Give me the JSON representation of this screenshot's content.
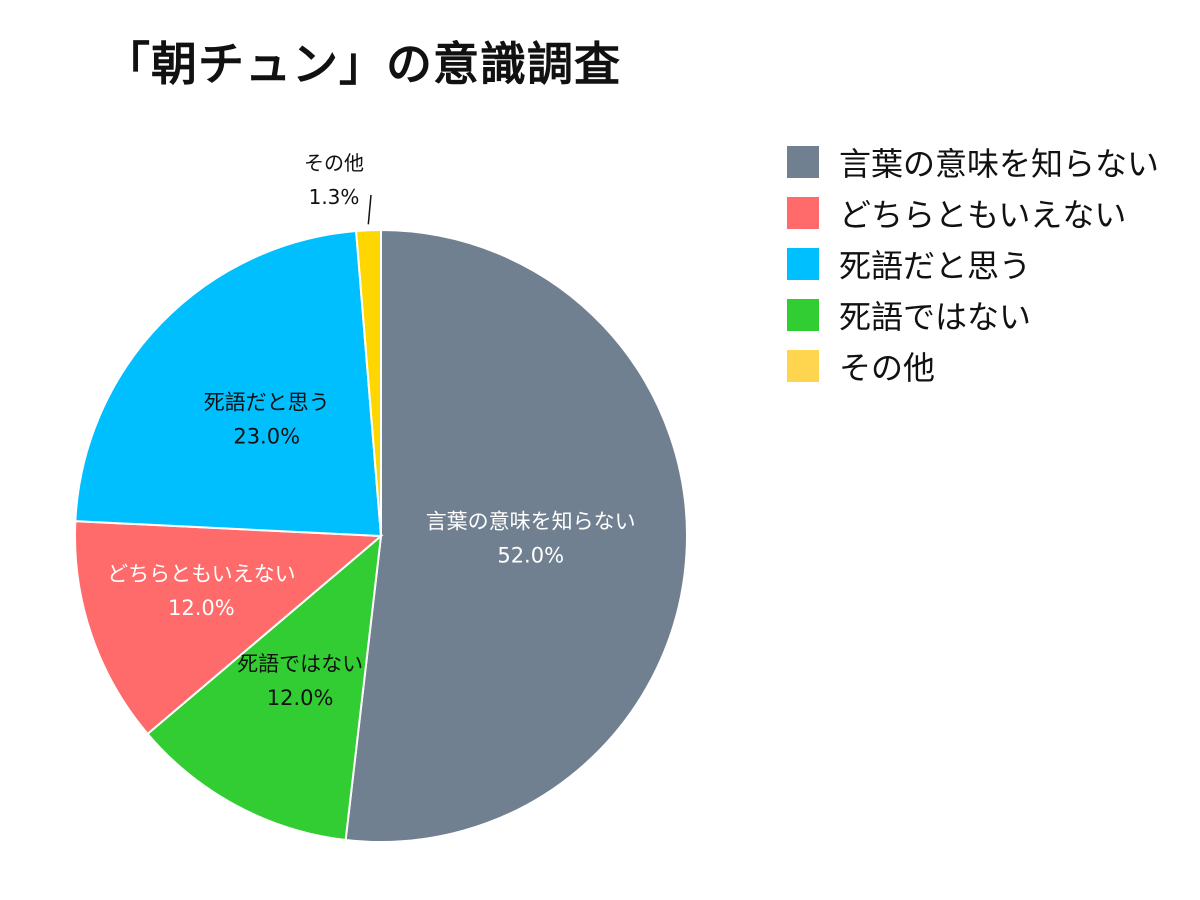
{
  "title": "「朝チュン」の意識調査",
  "chart_data": {
    "type": "pie",
    "title": "「朝チュン」の意識調査",
    "slices": [
      {
        "label": "言葉の意味を知らない",
        "value": 52.0,
        "display": "52.0%",
        "color": "#708090",
        "label_color": "#ffffff"
      },
      {
        "label": "死語ではない",
        "value": 12.0,
        "display": "12.0%",
        "color": "#32cd32",
        "label_color": "#111111"
      },
      {
        "label": "どちらともいえない",
        "value": 12.0,
        "display": "12.0%",
        "color": "#ff6b6b",
        "label_color": "#ffffff"
      },
      {
        "label": "死語だと思う",
        "value": 23.0,
        "display": "23.0%",
        "color": "#00bfff",
        "label_color": "#111111"
      },
      {
        "label": "その他",
        "value": 1.3,
        "display": "1.3%",
        "color": "#ffd700",
        "label_color": "#111111"
      }
    ],
    "start_angle": "12 o'clock",
    "direction": "clockwise",
    "legend_position": "right",
    "legend": [
      {
        "label": "言葉の意味を知らない",
        "color": "#708090"
      },
      {
        "label": "どちらともいえない",
        "color": "#ff6b6b"
      },
      {
        "label": "死語だと思う",
        "color": "#00bfff"
      },
      {
        "label": "死語ではない",
        "color": "#32cd32"
      },
      {
        "label": "その他",
        "color": "#ffd54f"
      }
    ]
  }
}
